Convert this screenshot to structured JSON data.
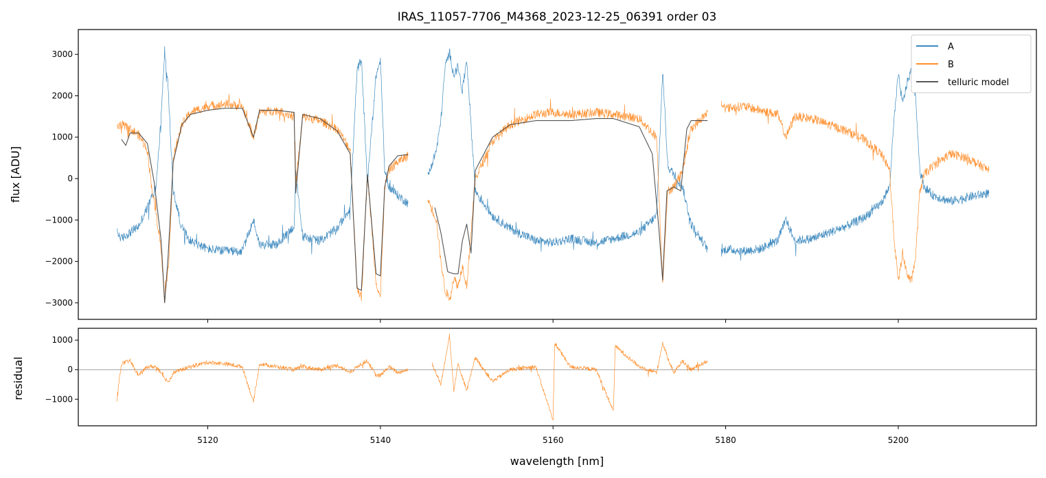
{
  "chart_data": {
    "type": "line",
    "title": "IRAS_11057-7706_M4368_2023-12-25_06391  order 03",
    "xlabel": "wavelength [nm]",
    "xlim": [
      5105,
      5216
    ],
    "xticks": [
      5120,
      5140,
      5160,
      5180,
      5200
    ],
    "colors": {
      "A": "#1f77b4",
      "B": "#ff7f0e",
      "telluric": "#404040",
      "zero_line": "#808080"
    },
    "legend": {
      "placement": "top-right",
      "entries": [
        "A",
        "B",
        "telluric model"
      ]
    },
    "panels": [
      {
        "id": "flux",
        "ylabel": "flux [ADU]",
        "ylim": [
          -3400,
          3600
        ],
        "yticks": [
          -3000,
          -2000,
          -1000,
          0,
          1000,
          2000,
          3000
        ],
        "series": [
          {
            "name": "A",
            "color": "#1f77b4",
            "segments": [
              {
                "x": [
                  5109.5,
                  5110,
                  5111,
                  5112,
                  5113,
                  5114,
                  5114.6,
                  5115,
                  5115.4,
                  5116,
                  5117,
                  5118,
                  5120,
                  5122,
                  5124,
                  5125.3,
                  5126,
                  5128,
                  5130,
                  5130.2,
                  5131,
                  5133,
                  5135,
                  5136.5,
                  5137.3,
                  5137.8,
                  5138.5,
                  5139.5,
                  5140,
                  5140.5,
                  5141,
                  5142,
                  5143.2
                ],
                "y": [
                  -1300,
                  -1450,
                  -1300,
                  -1150,
                  -700,
                  -200,
                  1500,
                  3100,
                  2200,
                  -300,
                  -1200,
                  -1500,
                  -1700,
                  -1750,
                  -1750,
                  -1000,
                  -1600,
                  -1600,
                  -1150,
                  100,
                  -1400,
                  -1500,
                  -1200,
                  -700,
                  2600,
                  2900,
                  -100,
                  2500,
                  2850,
                  200,
                  -200,
                  -400,
                  -600
                ]
              },
              {
                "x": [
                  5145.5,
                  5146.5,
                  5147,
                  5147.5,
                  5148,
                  5148.5,
                  5149,
                  5149.5,
                  5150,
                  5151,
                  5153,
                  5155,
                  5158,
                  5160,
                  5162,
                  5165,
                  5167,
                  5170,
                  5172,
                  5172.7,
                  5173.3,
                  5174,
                  5175,
                  5176,
                  5177.9
                ],
                "y": [
                  50,
                  700,
                  1400,
                  2700,
                  3050,
                  2500,
                  2700,
                  2100,
                  2900,
                  -300,
                  -900,
                  -1200,
                  -1500,
                  -1550,
                  -1450,
                  -1550,
                  -1450,
                  -1300,
                  -900,
                  2600,
                  300,
                  100,
                  -200,
                  -1100,
                  -1700
                ]
              },
              {
                "x": [
                  5179.5,
                  5180,
                  5182,
                  5184,
                  5186,
                  5187,
                  5188,
                  5190,
                  5192,
                  5194,
                  5196,
                  5198,
                  5199,
                  5199.5,
                  5200,
                  5200.5,
                  5201,
                  5201.5,
                  5202,
                  5202.5,
                  5203,
                  5204,
                  5206,
                  5208,
                  5210.5
                ],
                "y": [
                  -1800,
                  -1700,
                  -1750,
                  -1700,
                  -1500,
                  -1000,
                  -1500,
                  -1450,
                  -1300,
                  -1150,
                  -950,
                  -600,
                  -200,
                  1400,
                  2500,
                  1800,
                  2300,
                  2600,
                  2000,
                  200,
                  -200,
                  -400,
                  -550,
                  -450,
                  -350
                ]
              }
            ]
          },
          {
            "name": "B",
            "color": "#ff7f0e",
            "segments": [
              {
                "x": [
                  5109.5,
                  5110,
                  5111,
                  5112,
                  5113,
                  5113.5,
                  5114.5,
                  5115,
                  5115.5,
                  5116,
                  5117,
                  5118,
                  5120,
                  5122,
                  5124,
                  5125.3,
                  5126,
                  5128,
                  5130,
                  5130.2,
                  5131,
                  5133,
                  5135,
                  5136.5,
                  5137.3,
                  5137.8,
                  5138.5,
                  5139.5,
                  5140,
                  5140.5,
                  5141,
                  5142,
                  5143.2
                ],
                "y": [
                  1200,
                  1300,
                  1200,
                  1050,
                  700,
                  -200,
                  -1500,
                  -2900,
                  -2000,
                  500,
                  1300,
                  1600,
                  1750,
                  1800,
                  1750,
                  1000,
                  1600,
                  1650,
                  1500,
                  -100,
                  1500,
                  1400,
                  1200,
                  700,
                  -2600,
                  -2900,
                  100,
                  -2500,
                  -2850,
                  -200,
                  200,
                  400,
                  550
                ]
              },
              {
                "x": [
                  5145.5,
                  5146.5,
                  5147,
                  5147.5,
                  5148,
                  5148.5,
                  5149,
                  5149.5,
                  5150,
                  5151,
                  5153,
                  5155,
                  5158,
                  5160,
                  5162,
                  5165,
                  5167,
                  5170,
                  5172,
                  5172.7,
                  5173.3,
                  5174,
                  5175,
                  5176,
                  5177.9
                ],
                "y": [
                  -500,
                  -1000,
                  -2000,
                  -2700,
                  -2900,
                  -2400,
                  -2600,
                  -2100,
                  -2600,
                  0,
                  900,
                  1300,
                  1550,
                  1600,
                  1550,
                  1600,
                  1550,
                  1450,
                  1000,
                  -2500,
                  -300,
                  -200,
                  200,
                  1200,
                  1600
                ]
              },
              {
                "x": [
                  5179.5,
                  5180,
                  5182,
                  5184,
                  5186,
                  5187,
                  5188,
                  5190,
                  5192,
                  5194,
                  5196,
                  5198,
                  5199,
                  5199.5,
                  5200,
                  5200.5,
                  5201,
                  5201.5,
                  5202,
                  5202.5,
                  5203,
                  5204,
                  5206,
                  5208,
                  5210.5
                ],
                "y": [
                  1800,
                  1700,
                  1750,
                  1650,
                  1550,
                  1000,
                  1500,
                  1450,
                  1300,
                  1150,
                  950,
                  600,
                  200,
                  -1400,
                  -2500,
                  -1800,
                  -2300,
                  -2500,
                  -1900,
                  -300,
                  100,
                  300,
                  600,
                  500,
                  200
                ]
              }
            ]
          },
          {
            "name": "telluric model",
            "color": "#404040",
            "segments": [
              {
                "x": [
                  5110,
                  5110.5,
                  5111,
                  5112,
                  5113,
                  5113.8,
                  5114.6,
                  5115,
                  5115.4,
                  5116,
                  5117,
                  5118,
                  5120,
                  5122,
                  5124,
                  5125.3,
                  5126,
                  5128,
                  5130,
                  5130.2,
                  5131,
                  5133,
                  5135,
                  5136.5,
                  5137.3,
                  5137.8,
                  5138.5,
                  5139.5,
                  5140,
                  5140.5,
                  5141,
                  5142,
                  5143.2
                ],
                "y": [
                  950,
                  800,
                  1100,
                  1100,
                  850,
                  -100,
                  -1500,
                  -3000,
                  -1900,
                  400,
                  1300,
                  1550,
                  1650,
                  1700,
                  1700,
                  1000,
                  1650,
                  1650,
                  1600,
                  -350,
                  1550,
                  1450,
                  1150,
                  600,
                  -2650,
                  -2700,
                  100,
                  -2300,
                  -2350,
                  -200,
                  300,
                  550,
                  580
                ]
              },
              {
                "x": [
                  5146.3,
                  5147,
                  5147.8,
                  5148.5,
                  5149,
                  5149.5,
                  5150,
                  5150.5,
                  5151,
                  5153,
                  5155,
                  5158,
                  5160,
                  5162,
                  5165,
                  5167,
                  5170,
                  5171.5,
                  5172.3,
                  5172.7,
                  5173.2,
                  5174,
                  5174.8,
                  5175.5,
                  5176,
                  5177.9
                ],
                "y": [
                  -700,
                  -1300,
                  -2250,
                  -2300,
                  -2300,
                  -1500,
                  -1100,
                  -1800,
                  200,
                  1000,
                  1300,
                  1400,
                  1400,
                  1400,
                  1450,
                  1450,
                  1250,
                  600,
                  -1300,
                  -2450,
                  -300,
                  -200,
                  -300,
                  1200,
                  1400,
                  1400
                ]
              }
            ]
          }
        ]
      },
      {
        "id": "residual",
        "ylabel": "residual",
        "ylim": [
          -1900,
          1400
        ],
        "yticks": [
          -1000,
          0,
          1000
        ],
        "zero_line": true,
        "series": [
          {
            "name": "B",
            "color": "#ff7f0e",
            "segments": [
              {
                "x": [
                  5109.5,
                  5110,
                  5111,
                  5112,
                  5113,
                  5114,
                  5115,
                  5115.5,
                  5116,
                  5117,
                  5118,
                  5120,
                  5122,
                  5124,
                  5125.3,
                  5126,
                  5128,
                  5130,
                  5131,
                  5133,
                  5135,
                  5136.5,
                  5137.5,
                  5138.5,
                  5139.5,
                  5140,
                  5141,
                  5142,
                  5143.2
                ],
                "y": [
                  -900,
                  200,
                  300,
                  -200,
                  100,
                  100,
                  -300,
                  -400,
                  -100,
                  0,
                  100,
                  250,
                  200,
                  100,
                  -1100,
                  200,
                  100,
                  0,
                  100,
                  0,
                  150,
                  -100,
                  150,
                  300,
                  -200,
                  -200,
                  100,
                  -100,
                  0
                ]
              },
              {
                "x": [
                  5146,
                  5147,
                  5147.5,
                  5148,
                  5148.5,
                  5149,
                  5150,
                  5151,
                  5153,
                  5155,
                  5158,
                  5160,
                  5160.2,
                  5162,
                  5165,
                  5167,
                  5167.2,
                  5170,
                  5172,
                  5172.7,
                  5173.3,
                  5174,
                  5175,
                  5176,
                  5177.9
                ],
                "y": [
                  200,
                  -500,
                  300,
                  1200,
                  -700,
                  200,
                  -700,
                  400,
                  -400,
                  0,
                  100,
                  -1700,
                  900,
                  100,
                  0,
                  -1400,
                  800,
                  100,
                  -100,
                  900,
                  400,
                  -100,
                  300,
                  0,
                  300
                ]
              }
            ]
          }
        ]
      }
    ]
  }
}
